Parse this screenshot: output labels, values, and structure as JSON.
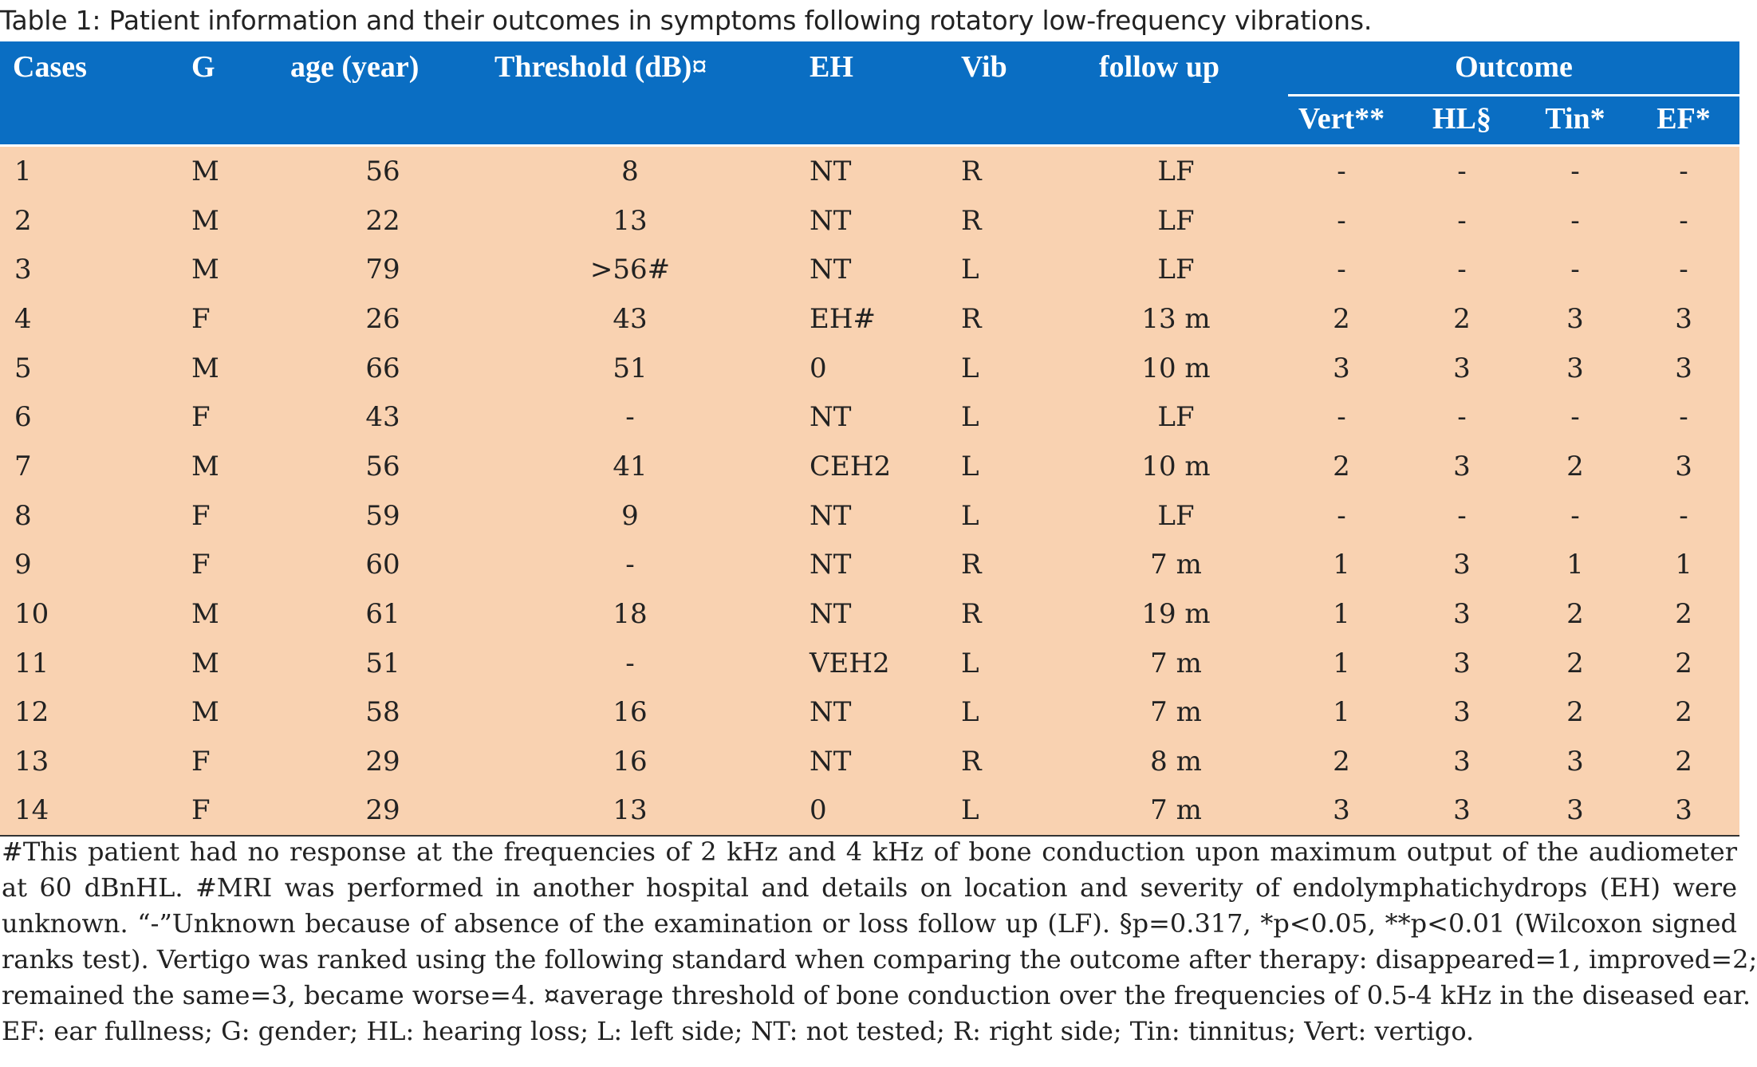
{
  "caption": "Table 1: Patient information and their outcomes in symptoms following rotatory low-frequency vibrations.",
  "headers": {
    "cases": "Cases",
    "g": "G",
    "age": "age (year)",
    "threshold": "Threshold (dB)¤",
    "eh": "EH",
    "vib": "Vib",
    "followup": "follow up",
    "outcome": "Outcome",
    "vert": "Vert**",
    "hl": "HL§",
    "tin": "Tin*",
    "ef": "EF*"
  },
  "rows": [
    [
      "1",
      "M",
      "56",
      "8",
      "NT",
      "R",
      "LF",
      "-",
      "-",
      "-",
      "-"
    ],
    [
      "2",
      "M",
      "22",
      "13",
      "NT",
      "R",
      "LF",
      "-",
      "-",
      "-",
      "-"
    ],
    [
      "3",
      "M",
      "79",
      ">56#",
      "NT",
      "L",
      "LF",
      "-",
      "-",
      "-",
      "-"
    ],
    [
      "4",
      "F",
      "26",
      "43",
      "EH#",
      "R",
      "13 m",
      "2",
      "2",
      "3",
      "3"
    ],
    [
      "5",
      "M",
      "66",
      "51",
      "0",
      "L",
      "10 m",
      "3",
      "3",
      "3",
      "3"
    ],
    [
      "6",
      "F",
      "43",
      "-",
      "NT",
      "L",
      "LF",
      "-",
      "-",
      "-",
      "-"
    ],
    [
      "7",
      "M",
      "56",
      "41",
      "CEH2",
      "L",
      "10 m",
      "2",
      "3",
      "2",
      "3"
    ],
    [
      "8",
      "F",
      "59",
      "9",
      "NT",
      "L",
      "LF",
      "-",
      "-",
      "-",
      "-"
    ],
    [
      "9",
      "F",
      "60",
      "-",
      "NT",
      "R",
      "7 m",
      "1",
      "3",
      "1",
      "1"
    ],
    [
      "10",
      "M",
      "61",
      "18",
      "NT",
      "R",
      "19 m",
      "1",
      "3",
      "2",
      "2"
    ],
    [
      "11",
      "M",
      "51",
      "-",
      "VEH2",
      "L",
      "7 m",
      "1",
      "3",
      "2",
      "2"
    ],
    [
      "12",
      "M",
      "58",
      "16",
      "NT",
      "L",
      "7 m",
      "1",
      "3",
      "2",
      "2"
    ],
    [
      "13",
      "F",
      "29",
      "16",
      "NT",
      "R",
      "8 m",
      "2",
      "3",
      "3",
      "2"
    ],
    [
      "14",
      "F",
      "29",
      "13",
      "0",
      "L",
      "7 m",
      "3",
      "3",
      "3",
      "3"
    ]
  ],
  "notes": [
    "#This patient had no response at the frequencies of 2 kHz and 4 kHz of bone conduction upon maximum output of the audiometer",
    "at 60 dBnHL. #MRI was performed in another hospital and details on location and severity of endolymphatichydrops (EH) were",
    "unknown. “-”Unknown because of absence of the examination or loss follow up (LF). §p=0.317, *p<0.05, **p<0.01 (Wilcoxon signed",
    "ranks test). Vertigo was ranked using the following standard when comparing the outcome after therapy: disappeared=1, improved=2;",
    "remained the same=3, became worse=4. ¤average threshold of bone conduction over the frequencies of 0.5-4 kHz in the diseased ear.",
    "EF: ear fullness; G: gender; HL: hearing loss; L: left side; NT: not tested; R: right side; Tin: tinnitus; Vert: vertigo."
  ],
  "colors": {
    "header_bg": "#0a6ec3",
    "body_bg": "#f9d2b1"
  }
}
